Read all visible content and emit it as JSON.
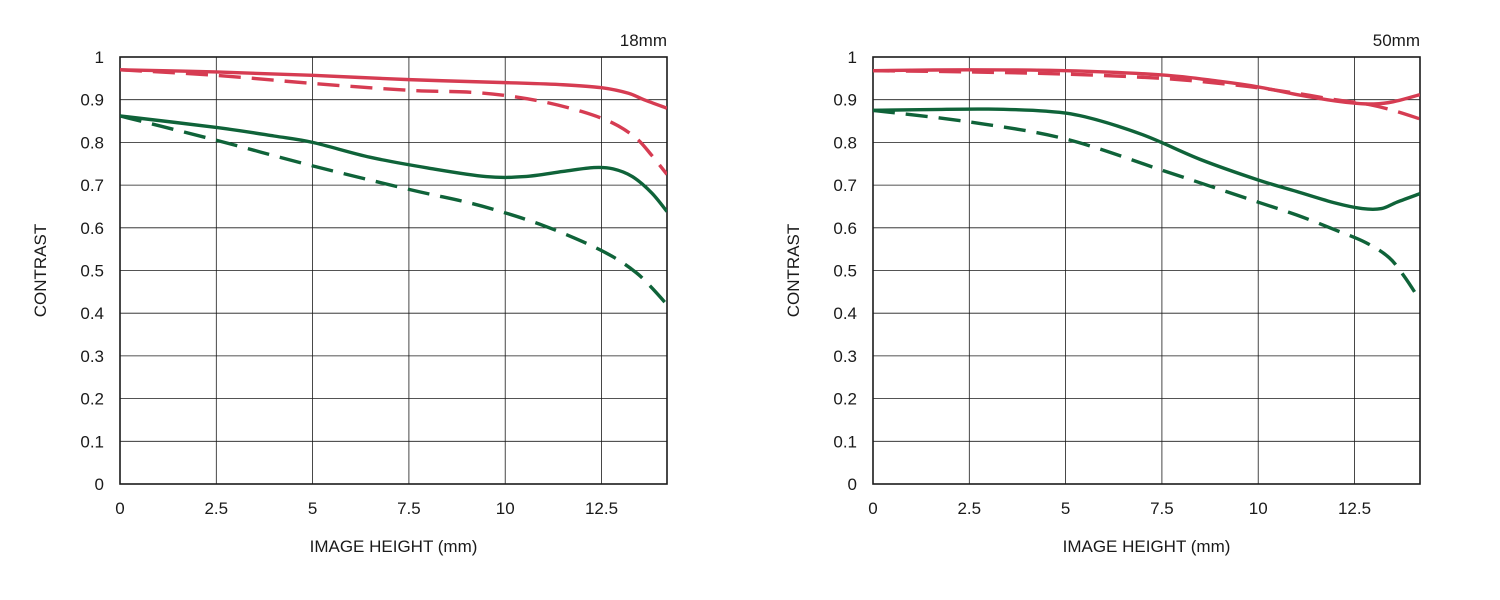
{
  "chart_data": [
    {
      "type": "line",
      "title": "18mm",
      "xlabel": "IMAGE HEIGHT (mm)",
      "ylabel": "CONTRAST",
      "xlim": [
        0,
        14.2
      ],
      "ylim": [
        0,
        1
      ],
      "xticks": [
        0,
        2.5,
        5,
        7.5,
        10,
        12.5
      ],
      "xtick_labels": [
        "0",
        "2.5",
        "5",
        "7.5",
        "10",
        "12.5"
      ],
      "yticks": [
        0,
        0.1,
        0.2,
        0.3,
        0.4,
        0.5,
        0.6,
        0.7,
        0.8,
        0.9,
        1
      ],
      "ytick_labels": [
        "0",
        "0.1",
        "0.2",
        "0.3",
        "0.4",
        "0.5",
        "0.6",
        "0.7",
        "0.8",
        "0.9",
        "1"
      ],
      "grid": true,
      "series": [
        {
          "name": "red-solid",
          "color": "#d63c52",
          "dash": "solid",
          "x": [
            0,
            2.5,
            5,
            7.5,
            10,
            11.5,
            12.5,
            13.2,
            13.6,
            14.2
          ],
          "y": [
            0.97,
            0.965,
            0.957,
            0.947,
            0.94,
            0.935,
            0.928,
            0.915,
            0.9,
            0.88
          ]
        },
        {
          "name": "red-dashed",
          "color": "#d63c52",
          "dash": "dashed",
          "x": [
            0,
            2.5,
            5,
            7.5,
            9,
            10,
            11,
            12,
            12.8,
            13.4,
            13.8,
            14.2
          ],
          "y": [
            0.97,
            0.957,
            0.938,
            0.922,
            0.918,
            0.91,
            0.895,
            0.872,
            0.845,
            0.81,
            0.77,
            0.725
          ]
        },
        {
          "name": "green-solid",
          "color": "#0f6339",
          "dash": "solid",
          "x": [
            0,
            2.5,
            4,
            5,
            6.5,
            8,
            9.5,
            10.5,
            11.5,
            12.3,
            12.8,
            13.3,
            13.8,
            14.2
          ],
          "y": [
            0.862,
            0.835,
            0.815,
            0.8,
            0.765,
            0.74,
            0.72,
            0.72,
            0.732,
            0.741,
            0.738,
            0.72,
            0.682,
            0.638
          ]
        },
        {
          "name": "green-dashed",
          "color": "#0f6339",
          "dash": "dashed",
          "x": [
            0,
            2.5,
            5,
            7.5,
            9,
            10,
            11,
            12,
            12.8,
            13.4,
            13.8,
            14.2
          ],
          "y": [
            0.862,
            0.805,
            0.745,
            0.69,
            0.66,
            0.635,
            0.605,
            0.568,
            0.532,
            0.495,
            0.46,
            0.42
          ]
        }
      ]
    },
    {
      "type": "line",
      "title": "50mm",
      "xlabel": "IMAGE HEIGHT (mm)",
      "ylabel": "CONTRAST",
      "xlim": [
        0,
        14.2
      ],
      "ylim": [
        0,
        1
      ],
      "xticks": [
        0,
        2.5,
        5,
        7.5,
        10,
        12.5
      ],
      "xtick_labels": [
        "0",
        "2.5",
        "5",
        "7.5",
        "10",
        "12.5"
      ],
      "yticks": [
        0,
        0.1,
        0.2,
        0.3,
        0.4,
        0.5,
        0.6,
        0.7,
        0.8,
        0.9,
        1
      ],
      "ytick_labels": [
        "0",
        "0.1",
        "0.2",
        "0.3",
        "0.4",
        "0.5",
        "0.6",
        "0.7",
        "0.8",
        "0.9",
        "1"
      ],
      "grid": true,
      "series": [
        {
          "name": "red-solid",
          "color": "#d63c52",
          "dash": "solid",
          "x": [
            0,
            2.5,
            5,
            7.5,
            9,
            10,
            11,
            12,
            12.5,
            13,
            13.5,
            14.2
          ],
          "y": [
            0.968,
            0.97,
            0.968,
            0.958,
            0.943,
            0.93,
            0.912,
            0.897,
            0.892,
            0.89,
            0.895,
            0.912
          ]
        },
        {
          "name": "red-dashed",
          "color": "#d63c52",
          "dash": "dashed",
          "x": [
            0,
            2.5,
            5,
            7.5,
            9,
            10,
            11,
            12,
            12.8,
            13.5,
            14.2
          ],
          "y": [
            0.968,
            0.965,
            0.96,
            0.95,
            0.938,
            0.928,
            0.915,
            0.9,
            0.89,
            0.875,
            0.855
          ]
        },
        {
          "name": "green-solid",
          "color": "#0f6339",
          "dash": "solid",
          "x": [
            0,
            1.5,
            3,
            4.5,
            5.5,
            7,
            8.5,
            10,
            11,
            12,
            12.7,
            13.2,
            13.6,
            14.2
          ],
          "y": [
            0.875,
            0.877,
            0.878,
            0.873,
            0.86,
            0.818,
            0.76,
            0.712,
            0.685,
            0.658,
            0.645,
            0.645,
            0.66,
            0.68
          ]
        },
        {
          "name": "green-dashed",
          "color": "#0f6339",
          "dash": "dashed",
          "x": [
            0,
            2.5,
            5,
            7.5,
            9,
            10,
            11,
            12,
            12.8,
            13.4,
            13.8,
            14.2
          ],
          "y": [
            0.875,
            0.848,
            0.808,
            0.735,
            0.69,
            0.66,
            0.63,
            0.595,
            0.565,
            0.53,
            0.485,
            0.43
          ]
        }
      ]
    }
  ]
}
